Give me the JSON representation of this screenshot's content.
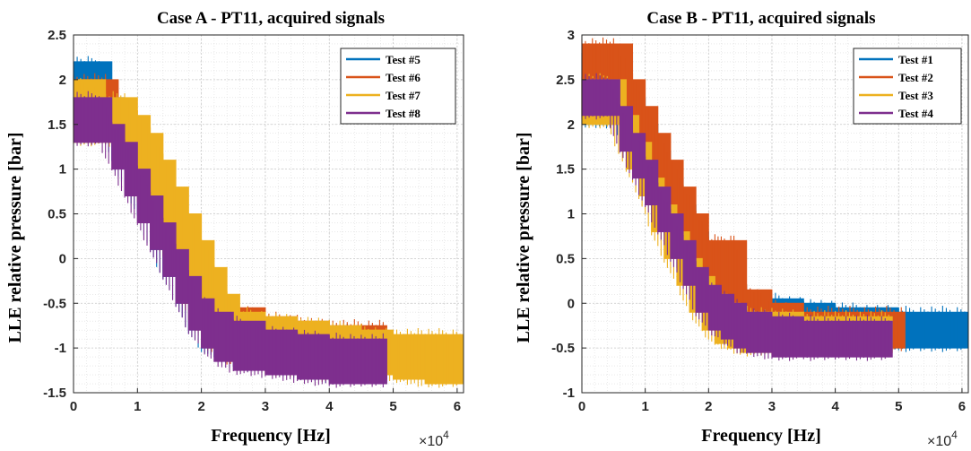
{
  "chart_data": [
    {
      "type": "area",
      "title": "Case A - PT11, acquired signals",
      "xlabel": "Frequency [Hz]",
      "ylabel": "LLE relative pressure [bar]",
      "x_multiplier_label": "×10",
      "x_multiplier_exp": "4",
      "xlim": [
        0,
        6.1
      ],
      "ylim": [
        -1.5,
        2.5
      ],
      "xticks": [
        0,
        1,
        2,
        3,
        4,
        5,
        6
      ],
      "xtick_labels": [
        "0",
        "1",
        "2",
        "3",
        "4",
        "5",
        "6"
      ],
      "yticks": [
        -1.5,
        -1,
        -0.5,
        0,
        0.5,
        1,
        1.5,
        2,
        2.5
      ],
      "ytick_labels": [
        "-1.5",
        "-1",
        "-0.5",
        "0",
        "0.5",
        "1",
        "1.5",
        "2",
        "2.5"
      ],
      "grid": true,
      "legend_position": "top-right",
      "series": [
        {
          "name": "Test #5",
          "color": "#0072BD",
          "x": [
            0,
            0.4,
            0.6,
            0.8,
            1.0,
            1.2,
            1.4,
            1.6,
            1.8,
            2.0,
            2.2,
            2.5,
            3.0,
            3.5,
            4.0,
            4.9
          ],
          "upper": [
            2.2,
            2.2,
            1.8,
            1.5,
            1.2,
            0.8,
            0.5,
            0.2,
            -0.2,
            -0.5,
            -0.6,
            -0.65,
            -0.7,
            -0.75,
            -0.8,
            -0.8
          ],
          "lower": [
            1.5,
            1.5,
            1.1,
            0.8,
            0.5,
            0.1,
            -0.2,
            -0.5,
            -0.8,
            -1.0,
            -1.1,
            -1.2,
            -1.25,
            -1.3,
            -1.35,
            -1.35
          ]
        },
        {
          "name": "Test #6",
          "color": "#D95319",
          "x": [
            0,
            0.5,
            0.7,
            0.9,
            1.1,
            1.3,
            1.5,
            1.7,
            1.9,
            2.1,
            2.4,
            3.0,
            3.5,
            4.0,
            4.9
          ],
          "upper": [
            2.0,
            2.0,
            1.7,
            1.4,
            1.1,
            0.8,
            0.5,
            0.1,
            -0.2,
            -0.4,
            -0.55,
            -0.65,
            -0.7,
            -0.75,
            -0.75
          ],
          "lower": [
            1.5,
            1.5,
            1.1,
            0.8,
            0.5,
            0.2,
            -0.1,
            -0.5,
            -0.8,
            -1.0,
            -1.15,
            -1.25,
            -1.3,
            -1.35,
            -1.35
          ]
        },
        {
          "name": "Test #7",
          "color": "#EDB120",
          "x": [
            0,
            0.5,
            0.8,
            1.0,
            1.2,
            1.4,
            1.6,
            1.8,
            2.0,
            2.2,
            2.4,
            2.6,
            3.0,
            3.5,
            4.0,
            4.5,
            5.0,
            5.5,
            6.1
          ],
          "upper": [
            2.0,
            1.8,
            1.8,
            1.6,
            1.4,
            1.1,
            0.8,
            0.5,
            0.2,
            -0.1,
            -0.4,
            -0.6,
            -0.65,
            -0.7,
            -0.75,
            -0.8,
            -0.85,
            -0.85,
            -0.85
          ],
          "lower": [
            1.3,
            1.3,
            1.1,
            0.9,
            0.6,
            0.3,
            0.0,
            -0.3,
            -0.6,
            -0.85,
            -1.0,
            -1.1,
            -1.2,
            -1.25,
            -1.3,
            -1.3,
            -1.35,
            -1.4,
            -1.4
          ]
        },
        {
          "name": "Test #8",
          "color": "#7E2F8E",
          "x": [
            0,
            0.4,
            0.6,
            0.8,
            1.0,
            1.2,
            1.4,
            1.6,
            1.8,
            2.0,
            2.2,
            2.5,
            3.0,
            3.5,
            4.0,
            4.5,
            4.9
          ],
          "upper": [
            1.8,
            1.8,
            1.5,
            1.3,
            1.0,
            0.7,
            0.4,
            0.1,
            -0.2,
            -0.45,
            -0.6,
            -0.7,
            -0.8,
            -0.85,
            -0.9,
            -0.9,
            -0.9
          ],
          "lower": [
            1.3,
            1.3,
            1.0,
            0.7,
            0.4,
            0.1,
            -0.2,
            -0.5,
            -0.8,
            -1.0,
            -1.15,
            -1.25,
            -1.3,
            -1.35,
            -1.4,
            -1.4,
            -1.4
          ]
        }
      ]
    },
    {
      "type": "area",
      "title": "Case B - PT11, acquired signals",
      "xlabel": "Frequency [Hz]",
      "ylabel": "LLE relative pressure [bar]",
      "x_multiplier_label": "×10",
      "x_multiplier_exp": "4",
      "xlim": [
        0,
        6.1
      ],
      "ylim": [
        -1,
        3
      ],
      "xticks": [
        0,
        1,
        2,
        3,
        4,
        5,
        6
      ],
      "xtick_labels": [
        "0",
        "1",
        "2",
        "3",
        "4",
        "5",
        "6"
      ],
      "yticks": [
        -1,
        -0.5,
        0,
        0.5,
        1,
        1.5,
        2,
        2.5,
        3
      ],
      "ytick_labels": [
        "-1",
        "-0.5",
        "0",
        "0.5",
        "1",
        "1.5",
        "2",
        "2.5",
        "3"
      ],
      "grid": true,
      "legend_position": "top-right",
      "series": [
        {
          "name": "Test #1",
          "color": "#0072BD",
          "x": [
            0,
            0.5,
            0.8,
            1.0,
            1.2,
            1.4,
            1.6,
            1.8,
            2.0,
            2.2,
            2.4,
            2.6,
            3.0,
            3.5,
            4.0,
            5.0,
            6.1
          ],
          "upper": [
            2.8,
            2.8,
            2.3,
            2.0,
            1.7,
            1.4,
            1.1,
            0.8,
            0.5,
            0.3,
            0.2,
            0.1,
            0.05,
            0.0,
            -0.05,
            -0.1,
            -0.1
          ],
          "lower": [
            2.0,
            2.0,
            1.6,
            1.3,
            1.0,
            0.6,
            0.3,
            0.0,
            -0.2,
            -0.3,
            -0.4,
            -0.45,
            -0.5,
            -0.5,
            -0.5,
            -0.5,
            -0.5
          ]
        },
        {
          "name": "Test #2",
          "color": "#D95319",
          "x": [
            0,
            0.5,
            0.8,
            1.0,
            1.2,
            1.4,
            1.6,
            1.8,
            2.0,
            2.2,
            2.4,
            2.6,
            3.0,
            3.5,
            4.0,
            5.1
          ],
          "upper": [
            2.9,
            2.9,
            2.5,
            2.2,
            1.9,
            1.6,
            1.3,
            1.0,
            0.7,
            0.7,
            0.7,
            0.15,
            0.0,
            -0.1,
            -0.1,
            -0.1
          ],
          "lower": [
            2.1,
            2.1,
            1.7,
            1.4,
            1.1,
            0.8,
            0.5,
            0.2,
            0.0,
            -0.2,
            -0.3,
            -0.4,
            -0.45,
            -0.5,
            -0.5,
            -0.5
          ]
        },
        {
          "name": "Test #3",
          "color": "#EDB120",
          "x": [
            0,
            0.4,
            0.7,
            0.9,
            1.1,
            1.3,
            1.5,
            1.7,
            1.9,
            2.1,
            2.3,
            2.5,
            3.0,
            3.5,
            4.0,
            4.9
          ],
          "upper": [
            2.5,
            2.5,
            2.1,
            1.8,
            1.4,
            1.1,
            0.8,
            0.5,
            0.3,
            0.1,
            0.0,
            -0.1,
            -0.1,
            -0.15,
            -0.15,
            -0.15
          ],
          "lower": [
            2.0,
            2.0,
            1.5,
            1.2,
            0.8,
            0.5,
            0.2,
            -0.1,
            -0.3,
            -0.45,
            -0.5,
            -0.55,
            -0.55,
            -0.55,
            -0.55,
            -0.55
          ]
        },
        {
          "name": "Test #4",
          "color": "#7E2F8E",
          "x": [
            0,
            0.4,
            0.6,
            0.8,
            1.0,
            1.2,
            1.4,
            1.6,
            1.8,
            2.0,
            2.2,
            2.4,
            2.6,
            3.0,
            3.5,
            4.0,
            4.9
          ],
          "upper": [
            2.5,
            2.5,
            2.2,
            1.9,
            1.6,
            1.3,
            1.0,
            0.7,
            0.4,
            0.2,
            0.1,
            0.0,
            -0.1,
            -0.15,
            -0.2,
            -0.2,
            -0.2
          ],
          "lower": [
            2.1,
            2.1,
            1.7,
            1.4,
            1.1,
            0.8,
            0.5,
            0.2,
            -0.1,
            -0.3,
            -0.4,
            -0.5,
            -0.55,
            -0.6,
            -0.6,
            -0.6,
            -0.6
          ]
        }
      ]
    }
  ]
}
